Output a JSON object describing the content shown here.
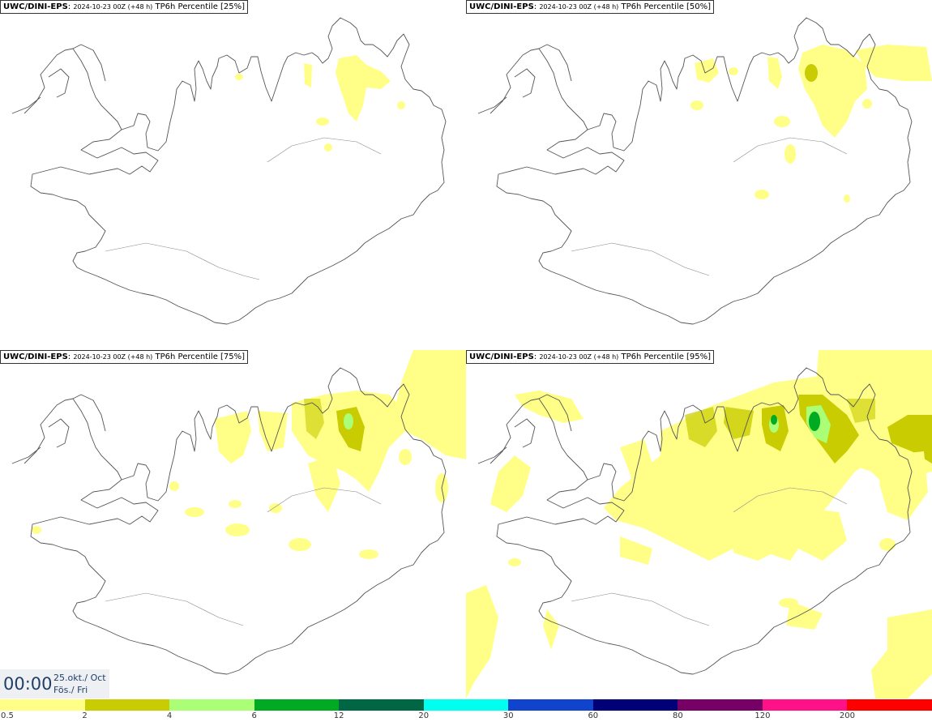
{
  "panels": [
    {
      "model": "UWC/DINI-EPS",
      "run": "2024-10-23 00Z (+48 h)",
      "product": "TP6h Percentile [25%]"
    },
    {
      "model": "UWC/DINI-EPS",
      "run": "2024-10-23 00Z (+48 h)",
      "product": "TP6h Percentile [50%]"
    },
    {
      "model": "UWC/DINI-EPS",
      "run": "2024-10-23 00Z (+48 h)",
      "product": "TP6h Percentile [75%]"
    },
    {
      "model": "UWC/DINI-EPS",
      "run": "2024-10-23 00Z (+48 h)",
      "product": "TP6h Percentile [95%]"
    }
  ],
  "valid_time": {
    "time": "00:00",
    "date": "25.okt./ Oct",
    "day": "Fös./ Fri"
  },
  "legend": {
    "ticks": [
      "0.5",
      "2",
      "4",
      "6",
      "12",
      "20",
      "30",
      "60",
      "80",
      "120",
      "200"
    ],
    "colors": [
      "#ffff88",
      "#c8cc00",
      "#aaff77",
      "#00aa22",
      "#006644",
      "#00ffee",
      "#1144cc",
      "#000077",
      "#770066",
      "#ff1188",
      "#ff0000"
    ]
  },
  "map_colors": {
    "coast": "#555555",
    "roads": "#888888"
  }
}
